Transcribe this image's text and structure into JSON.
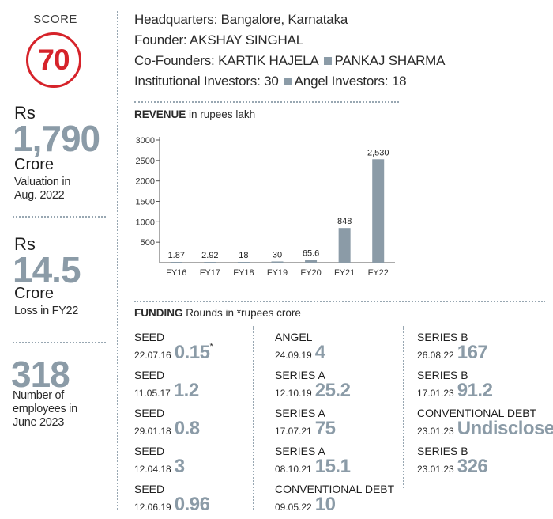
{
  "score": {
    "label": "SCORE",
    "value": "70"
  },
  "valuation": {
    "currency": "Rs",
    "value": "1,790",
    "unit": "Crore",
    "caption": "Valuation in Aug. 2022"
  },
  "loss": {
    "currency": "Rs",
    "value": "14.5",
    "unit": "Crore",
    "caption": "Loss in FY22"
  },
  "employees": {
    "value": "318",
    "caption": "Number of employees in June 2023"
  },
  "info": {
    "hq_label": "Headquarters:",
    "hq_value": "Bangalore, Karnataka",
    "founder_label": "Founder:",
    "founder_value": "AKSHAY SINGHAL",
    "cofounders_label": "Co-Founders:",
    "cofounder_1": "KARTIK HAJELA",
    "cofounder_2": "PANKAJ SHARMA",
    "inst_label": "Institutional Investors:",
    "inst_value": "30",
    "angel_label": "Angel Investors:",
    "angel_value": "18"
  },
  "revenue": {
    "title": "REVENUE",
    "subtitle": "in rupees lakh"
  },
  "chart_data": {
    "type": "bar",
    "title": "REVENUE in rupees lakh",
    "categories": [
      "FY16",
      "FY17",
      "FY18",
      "FY19",
      "FY20",
      "FY21",
      "FY22"
    ],
    "values": [
      1.87,
      2.92,
      18,
      30,
      65.6,
      848,
      2530
    ],
    "value_labels": [
      "1.87",
      "2.92",
      "18",
      "30",
      "65.6",
      "848",
      "2,530"
    ],
    "yticks": [
      "500",
      "1000",
      "1500",
      "2000",
      "2500",
      "3000"
    ],
    "ylim": [
      0,
      3000
    ],
    "bar_color": "#8b9ba7",
    "grid": false
  },
  "funding": {
    "title": "FUNDING",
    "subtitle": "Rounds in *rupees crore",
    "star": "*",
    "rounds": [
      {
        "type": "SEED",
        "date": "22.07.16",
        "amount": "0.15"
      },
      {
        "type": "SEED",
        "date": "11.05.17",
        "amount": "1.2"
      },
      {
        "type": "SEED",
        "date": "29.01.18",
        "amount": "0.8"
      },
      {
        "type": "SEED",
        "date": "12.04.18",
        "amount": "3"
      },
      {
        "type": "SEED",
        "date": "12.06.19",
        "amount": "0.96"
      },
      {
        "type": "ANGEL",
        "date": "24.09.19",
        "amount": "4"
      },
      {
        "type": "SERIES A",
        "date": "12.10.19",
        "amount": "25.2"
      },
      {
        "type": "SERIES A",
        "date": "17.07.21",
        "amount": "75"
      },
      {
        "type": "SERIES A",
        "date": "08.10.21",
        "amount": "15.1"
      },
      {
        "type": "CONVENTIONAL DEBT",
        "date": "09.05.22",
        "amount": "10"
      },
      {
        "type": "SERIES B",
        "date": "26.08.22",
        "amount": "167"
      },
      {
        "type": "SERIES B",
        "date": "17.01.23",
        "amount": "91.2"
      },
      {
        "type": "CONVENTIONAL DEBT",
        "date": "23.01.23",
        "amount": "Undisclosed"
      },
      {
        "type": "SERIES B",
        "date": "23.01.23",
        "amount": "326"
      }
    ]
  }
}
